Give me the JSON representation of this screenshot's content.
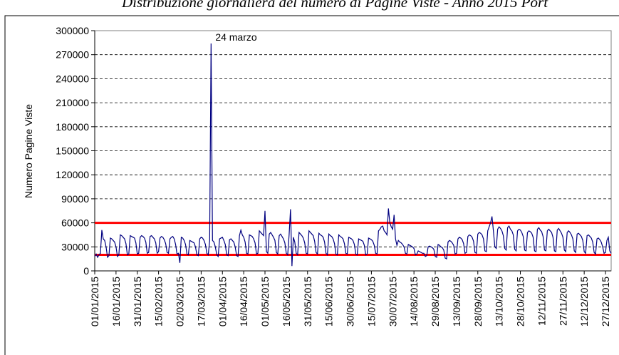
{
  "chart_data": {
    "type": "line",
    "title": "Distribuzione giornaliera del numero di Pagine Viste - Anno 2015 Port",
    "y_label": "Numero Pagine Viste",
    "annotation": "24 marzo",
    "ylim": [
      0,
      300000
    ],
    "yticks": [
      0,
      30000,
      60000,
      90000,
      120000,
      150000,
      180000,
      210000,
      240000,
      270000,
      300000
    ],
    "grid": true,
    "reference_lines": [
      {
        "value": 60000,
        "color": "#ff0000"
      },
      {
        "value": 20000,
        "color": "#ff0000"
      }
    ],
    "categories": [
      "01/01/2015",
      null,
      null,
      null,
      null,
      null,
      null,
      null,
      null,
      null,
      null,
      null,
      null,
      null,
      null,
      "16/01/2015",
      null,
      null,
      null,
      null,
      null,
      null,
      null,
      null,
      null,
      null,
      null,
      null,
      null,
      null,
      "31/01/2015",
      null,
      null,
      null,
      null,
      null,
      null,
      null,
      null,
      null,
      null,
      null,
      null,
      null,
      null,
      "15/02/2015",
      null,
      null,
      null,
      null,
      null,
      null,
      null,
      null,
      null,
      null,
      null,
      null,
      null,
      null,
      "02/03/2015",
      null,
      null,
      null,
      null,
      null,
      null,
      null,
      null,
      null,
      null,
      null,
      null,
      null,
      null,
      "17/03/2015",
      null,
      null,
      null,
      null,
      null,
      null,
      null,
      null,
      null,
      null,
      null,
      null,
      null,
      null,
      "01/04/2015",
      null,
      null,
      null,
      null,
      null,
      null,
      null,
      null,
      null,
      null,
      null,
      null,
      null,
      null,
      "16/04/2015",
      null,
      null,
      null,
      null,
      null,
      null,
      null,
      null,
      null,
      null,
      null,
      null,
      null,
      null,
      "01/05/2015",
      null,
      null,
      null,
      null,
      null,
      null,
      null,
      null,
      null,
      null,
      null,
      null,
      null,
      null,
      "16/05/2015",
      null,
      null,
      null,
      null,
      null,
      null,
      null,
      null,
      null,
      null,
      null,
      null,
      null,
      null,
      "31/05/2015",
      null,
      null,
      null,
      null,
      null,
      null,
      null,
      null,
      null,
      null,
      null,
      null,
      null,
      null,
      "15/06/2015",
      null,
      null,
      null,
      null,
      null,
      null,
      null,
      null,
      null,
      null,
      null,
      null,
      null,
      null,
      "30/06/2015",
      null,
      null,
      null,
      null,
      null,
      null,
      null,
      null,
      null,
      null,
      null,
      null,
      null,
      null,
      "15/07/2015",
      null,
      null,
      null,
      null,
      null,
      null,
      null,
      null,
      null,
      null,
      null,
      null,
      null,
      null,
      "30/07/2015",
      null,
      null,
      null,
      null,
      null,
      null,
      null,
      null,
      null,
      null,
      null,
      null,
      null,
      null,
      "14/08/2015",
      null,
      null,
      null,
      null,
      null,
      null,
      null,
      null,
      null,
      null,
      null,
      null,
      null,
      null,
      "29/08/2015",
      null,
      null,
      null,
      null,
      null,
      null,
      null,
      null,
      null,
      null,
      null,
      null,
      null,
      null,
      "13/09/2015",
      null,
      null,
      null,
      null,
      null,
      null,
      null,
      null,
      null,
      null,
      null,
      null,
      null,
      null,
      "28/09/2015",
      null,
      null,
      null,
      null,
      null,
      null,
      null,
      null,
      null,
      null,
      null,
      null,
      null,
      null,
      "13/10/2015",
      null,
      null,
      null,
      null,
      null,
      null,
      null,
      null,
      null,
      null,
      null,
      null,
      null,
      null,
      "28/10/2015",
      null,
      null,
      null,
      null,
      null,
      null,
      null,
      null,
      null,
      null,
      null,
      null,
      null,
      null,
      "12/11/2015",
      null,
      null,
      null,
      null,
      null,
      null,
      null,
      null,
      null,
      null,
      null,
      null,
      null,
      null,
      "27/11/2015",
      null,
      null,
      null,
      null,
      null,
      null,
      null,
      null,
      null,
      null,
      null,
      null,
      null,
      null,
      "12/12/2015",
      null,
      null,
      null,
      null,
      null,
      null,
      null,
      null,
      null,
      null,
      null,
      null,
      null,
      null,
      "27/12/2015",
      null,
      null,
      null,
      null
    ],
    "color": "#000080",
    "values": [
      18000,
      21000,
      17000,
      20000,
      22000,
      51000,
      40000,
      38000,
      30000,
      17000,
      19000,
      41000,
      40000,
      38000,
      36000,
      30000,
      18000,
      20000,
      45000,
      44000,
      42000,
      40000,
      34000,
      20000,
      21000,
      44000,
      43000,
      42000,
      41000,
      35000,
      21000,
      22000,
      42000,
      44000,
      43000,
      41000,
      36000,
      22000,
      23000,
      43000,
      44000,
      42000,
      40000,
      35000,
      22000,
      24000,
      41000,
      43000,
      42000,
      39000,
      34000,
      23000,
      22000,
      40000,
      42000,
      43000,
      40000,
      33000,
      21000,
      22000,
      10000,
      42000,
      41000,
      38000,
      33000,
      21000,
      20000,
      38000,
      37000,
      36000,
      35000,
      30000,
      20000,
      19000,
      40000,
      42000,
      41000,
      38000,
      33000,
      22000,
      20000,
      38000,
      284000,
      38000,
      36000,
      30000,
      20000,
      18000,
      40000,
      41000,
      42000,
      38000,
      33000,
      20000,
      19000,
      39000,
      40000,
      38000,
      36000,
      30000,
      19000,
      18000,
      44000,
      51000,
      45000,
      42000,
      36000,
      22000,
      21000,
      45000,
      44000,
      43000,
      40000,
      35000,
      21000,
      22000,
      50000,
      48000,
      46000,
      44000,
      75000,
      24000,
      22000,
      46000,
      48000,
      45000,
      42000,
      38000,
      23000,
      21000,
      44000,
      46000,
      43000,
      40000,
      35000,
      22000,
      20000,
      45000,
      77000,
      6000,
      42000,
      36000,
      22000,
      20000,
      48000,
      46000,
      44000,
      41000,
      35000,
      22000,
      21000,
      50000,
      48000,
      46000,
      44000,
      37000,
      23000,
      21000,
      47000,
      45000,
      44000,
      42000,
      36000,
      22000,
      20000,
      46000,
      44000,
      43000,
      40000,
      34000,
      21000,
      20000,
      45000,
      43000,
      42000,
      40000,
      34000,
      22000,
      21000,
      42000,
      41000,
      40000,
      38000,
      33000,
      21000,
      20000,
      40000,
      39000,
      38000,
      37000,
      32000,
      20000,
      21000,
      41000,
      40000,
      39000,
      37000,
      32000,
      22000,
      21000,
      50000,
      52000,
      55000,
      56000,
      50000,
      48000,
      45000,
      78000,
      60000,
      55000,
      52000,
      70000,
      40000,
      32000,
      38000,
      36000,
      35000,
      33000,
      30000,
      22000,
      21000,
      33000,
      32000,
      31000,
      30000,
      28000,
      20000,
      21000,
      25000,
      24000,
      23000,
      22000,
      22000,
      18000,
      19000,
      30000,
      31000,
      30000,
      29000,
      27000,
      18000,
      17000,
      33000,
      32000,
      30000,
      29000,
      26000,
      16000,
      15000,
      36000,
      38000,
      37000,
      35000,
      32000,
      21000,
      22000,
      40000,
      42000,
      41000,
      39000,
      34000,
      22000,
      23000,
      43000,
      45000,
      44000,
      42000,
      37000,
      23000,
      22000,
      46000,
      48000,
      47000,
      45000,
      40000,
      25000,
      24000,
      50000,
      55000,
      60000,
      68000,
      50000,
      30000,
      28000,
      52000,
      55000,
      53000,
      50000,
      44000,
      28000,
      26000,
      54000,
      56000,
      52000,
      50000,
      45000,
      27000,
      25000,
      50000,
      52000,
      51000,
      48000,
      43000,
      26000,
      25000,
      48000,
      50000,
      49000,
      47000,
      42000,
      25000,
      24000,
      52000,
      54000,
      51000,
      49000,
      43000,
      26000,
      25000,
      50000,
      52000,
      50000,
      48000,
      42000,
      25000,
      24000,
      51000,
      53000,
      50000,
      47000,
      42000,
      26000,
      24000,
      48000,
      50000,
      48000,
      45000,
      40000,
      25000,
      23000,
      46000,
      47000,
      45000,
      43000,
      38000,
      24000,
      22000,
      44000,
      45000,
      43000,
      41000,
      36000,
      23000,
      21000,
      40000,
      41000,
      39000,
      36000,
      30000,
      22000,
      23000,
      38000,
      42000,
      25000,
      22000
    ]
  }
}
